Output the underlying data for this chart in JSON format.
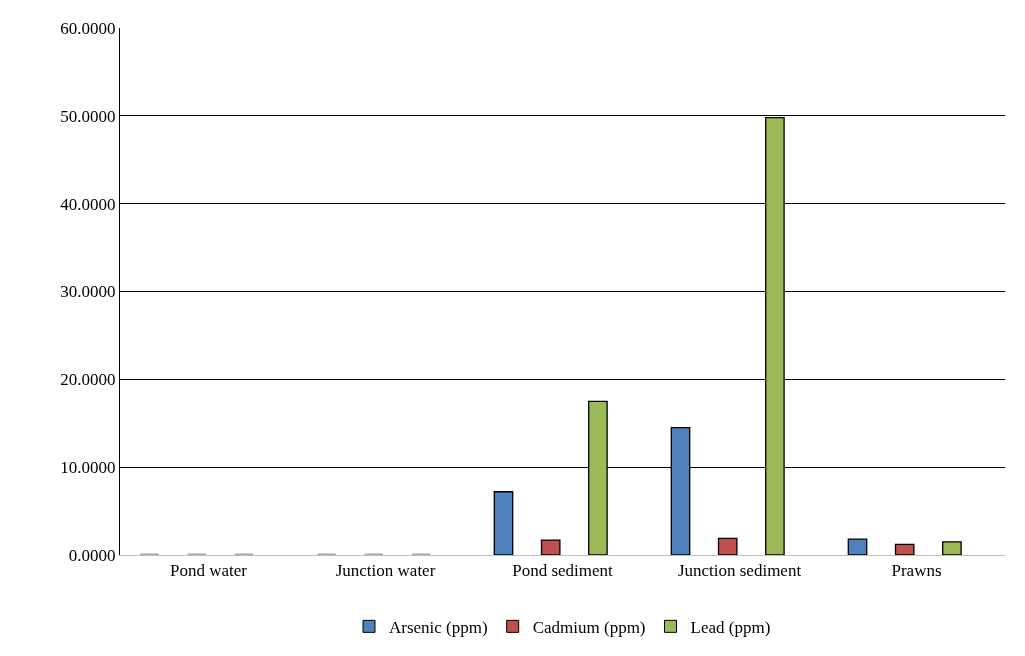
{
  "chart_data": {
    "type": "bar",
    "categories": [
      "Pond water",
      "Junction water",
      "Pond sediment",
      "Junction sediment",
      "Prawns"
    ],
    "series": [
      {
        "name": "Arsenic (ppm)",
        "color": "#4f81bd",
        "colors": [
          "#a6a6a6",
          "#a6a6a6",
          "#4f81bd",
          "#4f81bd",
          "#4f81bd"
        ],
        "values": [
          0,
          0,
          7.2,
          14.5,
          1.8
        ]
      },
      {
        "name": "Cadmium (ppm)",
        "color": "#c0504d",
        "colors": [
          "#a6a6a6",
          "#a6a6a6",
          "#c0504d",
          "#c0504d",
          "#c0504d"
        ],
        "values": [
          0,
          0,
          1.7,
          1.9,
          1.2
        ]
      },
      {
        "name": "Lead (ppm)",
        "color": "#9bbb59",
        "colors": [
          "#a6a6a6",
          "#a6a6a6",
          "#9bbb59",
          "#9bbb59",
          "#9bbb59"
        ],
        "values": [
          0,
          0,
          17.5,
          49.8,
          1.5
        ]
      }
    ],
    "ylim": [
      0,
      60
    ],
    "yticks": [
      {
        "value": 0,
        "label": "0.0000"
      },
      {
        "value": 10,
        "label": "10.0000"
      },
      {
        "value": 20,
        "label": "20.0000"
      },
      {
        "value": 30,
        "label": "30.0000"
      },
      {
        "value": 40,
        "label": "40.0000"
      },
      {
        "value": 50,
        "label": "50.0000"
      },
      {
        "value": 60,
        "label": "60.0000"
      }
    ],
    "grid": "y",
    "legend": "bottom"
  }
}
